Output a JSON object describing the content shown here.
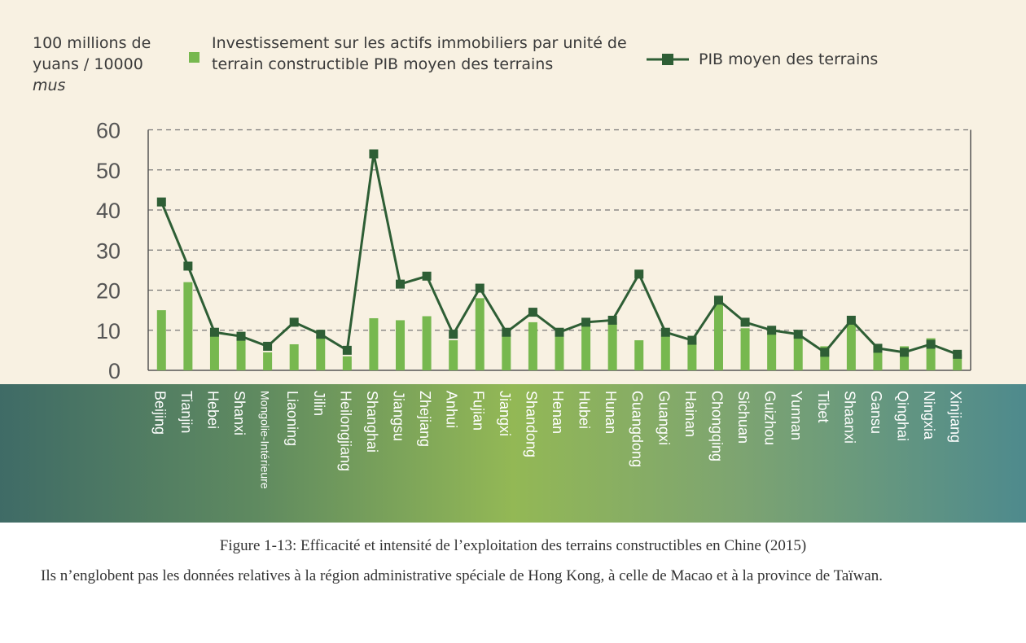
{
  "chart_data": {
    "type": "bar+line",
    "ylabel_lines": [
      "100 millions de",
      "yuans / 10000",
      "mus"
    ],
    "yticks": [
      0,
      10,
      20,
      30,
      40,
      50,
      60
    ],
    "ylim": [
      0,
      60
    ],
    "grid": "horizontal dashed",
    "legend_placement": "top",
    "colors": {
      "bar": "#77b84f",
      "line": "#2e5e35",
      "grid": "#777777",
      "label": "#ffffff"
    },
    "categories": [
      "Beijing",
      "Tianjin",
      "Hebei",
      "Shanxi",
      "Mongolie-Intérieure",
      "Liaoning",
      "Jilin",
      "Heilongjiang",
      "Shanghai",
      "Jiangsu",
      "Zhejiang",
      "Anhui",
      "Fujian",
      "Jiangxi",
      "Shandong",
      "Henan",
      "Hubei",
      "Hunan",
      "Guangdong",
      "Guangxi",
      "Hainan",
      "Chongqing",
      "Sichuan",
      "Guizhou",
      "Yunnan",
      "Tibet",
      "Shaanxi",
      "Gansu",
      "Qinghai",
      "Ningxia",
      "Xinjiang"
    ],
    "series": [
      {
        "name": "Investissement sur les actifs immobiliers par unité de terrain constructible  PIB moyen des terrains",
        "type": "bar",
        "values": [
          15,
          22,
          9.5,
          8,
          4.5,
          6.5,
          8.5,
          3.5,
          13,
          12.5,
          13.5,
          7.5,
          18,
          9,
          12,
          9,
          11.5,
          12,
          7.5,
          8.5,
          7,
          16.5,
          10.5,
          9.5,
          8.5,
          6,
          12,
          6.5,
          6,
          8,
          4
        ]
      },
      {
        "name": "PIB moyen des terrains",
        "type": "line",
        "values": [
          42,
          26,
          9.5,
          8.5,
          6,
          12,
          9,
          5,
          54,
          21.5,
          23.5,
          9,
          20.5,
          9.5,
          14.5,
          9.5,
          12,
          12.5,
          24,
          9.5,
          7.5,
          17.5,
          12,
          10,
          9,
          4.5,
          12.5,
          5.5,
          4.5,
          6.5,
          4
        ]
      }
    ]
  },
  "caption": {
    "title": "Figure 1-13: Efficacité et intensité de l’exploitation des terrains constructibles en Chine (2015)",
    "note": "Ils n’englobent pas les données relatives à la région administrative spéciale de Hong Kong, à celle de Macao et à la province de Taïwan."
  }
}
